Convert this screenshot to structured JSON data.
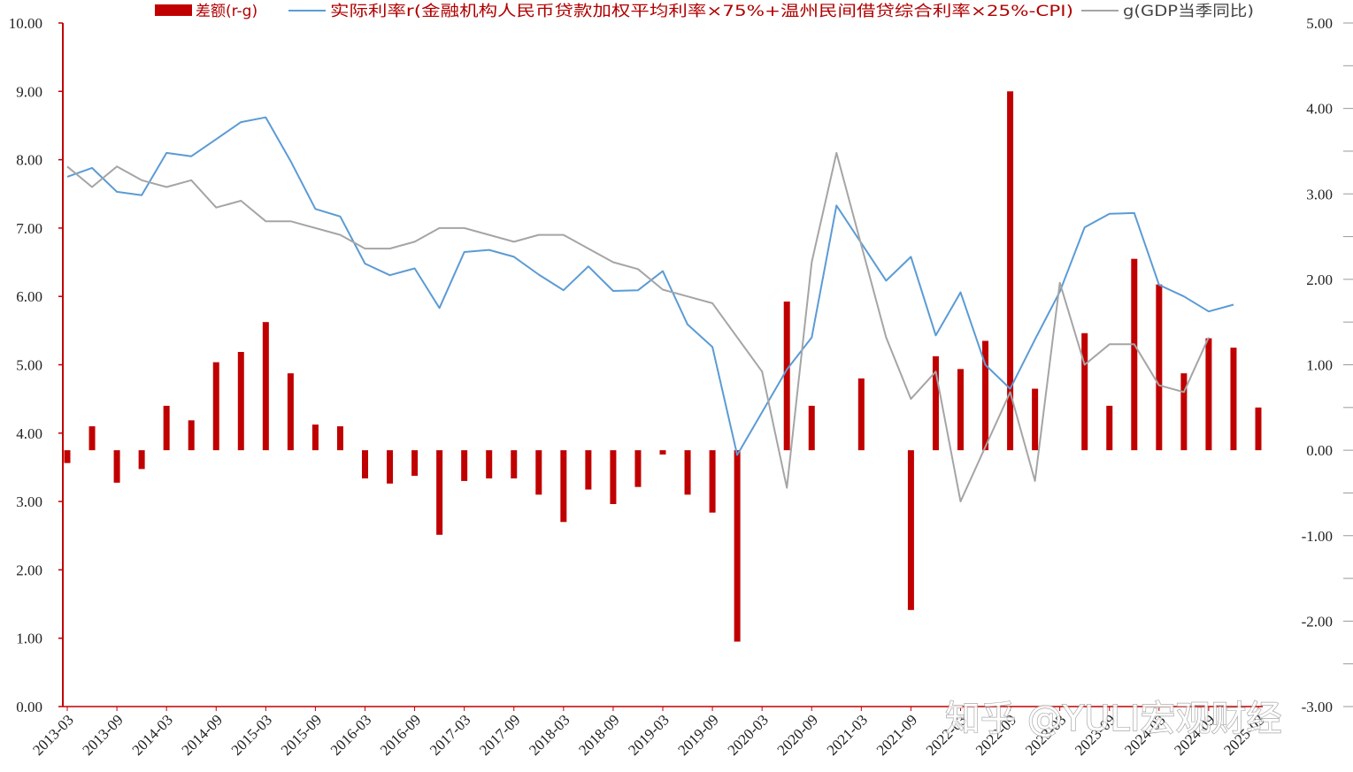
{
  "chart_data": {
    "type": "bar+line",
    "categories": [
      "2013-03",
      "2013-06",
      "2013-09",
      "2013-12",
      "2014-03",
      "2014-06",
      "2014-09",
      "2014-12",
      "2015-03",
      "2015-06",
      "2015-09",
      "2015-12",
      "2016-03",
      "2016-06",
      "2016-09",
      "2016-12",
      "2017-03",
      "2017-06",
      "2017-09",
      "2017-12",
      "2018-03",
      "2018-06",
      "2018-09",
      "2018-12",
      "2019-03",
      "2019-06",
      "2019-09",
      "2019-12",
      "2020-03",
      "2020-06",
      "2020-09",
      "2020-12",
      "2021-03",
      "2021-06",
      "2021-09",
      "2021-12",
      "2022-03",
      "2022-06",
      "2022-09",
      "2022-12",
      "2023-03",
      "2023-06",
      "2023-09",
      "2023-12",
      "2024-03",
      "2024-06",
      "2024-09",
      "2024-12",
      "2025-03"
    ],
    "x_tick_labels": [
      "2013-03",
      "2013-09",
      "2014-03",
      "2014-09",
      "2015-03",
      "2015-09",
      "2016-03",
      "2016-09",
      "2017-03",
      "2017-09",
      "2018-03",
      "2018-09",
      "2019-03",
      "2019-09",
      "2020-03",
      "2020-09",
      "2021-03",
      "2021-09",
      "2022-03",
      "2022-09",
      "2023-03",
      "2023-09",
      "2024-03",
      "2024-09",
      "2025-03"
    ],
    "left_axis": {
      "ylim": [
        0,
        10
      ],
      "ticks": [
        "0.00",
        "1.00",
        "2.00",
        "3.00",
        "4.00",
        "5.00",
        "6.00",
        "7.00",
        "8.00",
        "9.00",
        "10.00"
      ]
    },
    "right_axis": {
      "ylim": [
        -3,
        5
      ],
      "ticks": [
        "-3.00",
        "-2.00",
        "-1.00",
        "0.00",
        "1.00",
        "2.00",
        "3.00",
        "4.00",
        "5.00"
      ]
    },
    "series": [
      {
        "name": "差额(r-g)",
        "type": "bar",
        "axis": "right",
        "color": "#c00000",
        "values": [
          -0.15,
          0.28,
          -0.38,
          -0.22,
          0.52,
          0.35,
          1.03,
          1.15,
          1.5,
          0.9,
          0.3,
          0.28,
          -0.33,
          -0.39,
          -0.3,
          -0.99,
          -0.36,
          -0.33,
          -0.33,
          -0.52,
          -0.84,
          -0.46,
          -0.63,
          -0.43,
          -0.05,
          -0.52,
          -0.73,
          -2.24,
          null,
          1.74,
          0.52,
          null,
          0.84,
          null,
          -1.87,
          1.1,
          0.95,
          1.28,
          4.2,
          0.72,
          null,
          1.37,
          0.52,
          2.24,
          1.94,
          0.9,
          1.31,
          1.2,
          0.5
        ]
      },
      {
        "name": "实际利率r(金融机构人民币贷款加权平均利率×75%+温州民间借贷综合利率×25%-CPI)",
        "type": "line",
        "axis": "left",
        "color": "#5b9bd5",
        "values": [
          7.75,
          7.88,
          7.53,
          7.48,
          8.1,
          8.05,
          8.3,
          8.55,
          8.62,
          7.98,
          7.28,
          7.17,
          6.48,
          6.31,
          6.41,
          5.83,
          6.65,
          6.68,
          6.58,
          6.32,
          6.09,
          6.44,
          6.08,
          6.09,
          6.37,
          5.59,
          5.26,
          3.68,
          null,
          4.93,
          5.4,
          7.33,
          null,
          6.23,
          6.58,
          5.43,
          6.06,
          5.0,
          4.65,
          5.37,
          6.07,
          7.01,
          7.21,
          7.22,
          6.17,
          6.0,
          5.78,
          5.88,
          null
        ]
      },
      {
        "name": "g(GDP当季同比)",
        "type": "line",
        "axis": "left",
        "color": "#a5a5a5",
        "values": [
          7.9,
          7.6,
          7.9,
          7.7,
          7.6,
          7.7,
          7.3,
          7.4,
          7.1,
          7.1,
          7.0,
          6.9,
          6.7,
          6.7,
          6.8,
          7.0,
          7.0,
          6.9,
          6.8,
          6.9,
          6.9,
          6.7,
          6.5,
          6.4,
          6.1,
          6.0,
          5.9,
          null,
          4.9,
          3.2,
          6.5,
          8.1,
          null,
          5.4,
          4.5,
          4.9,
          3.0,
          null,
          4.6,
          3.3,
          6.2,
          5.0,
          5.3,
          5.3,
          4.7,
          4.6,
          5.4,
          null,
          null
        ]
      }
    ]
  },
  "legend": {
    "bar_label": "差额(r-g)",
    "r_label": "实际利率r(金融机构人民币贷款加权平均利率×75%+温州民间借贷综合利率×25%-CPI)",
    "g_label": "g(GDP当季同比)"
  },
  "watermark": "知乎 @YULI宏观财经",
  "colors": {
    "bar": "#c00000",
    "r_line": "#5b9bd5",
    "g_line": "#a5a5a5",
    "axis": "#c00000"
  }
}
